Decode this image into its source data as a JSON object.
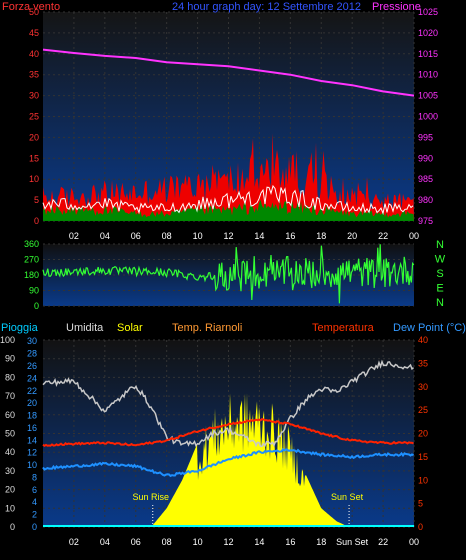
{
  "chart_data": [
    {
      "type": "line",
      "title": "24 hour graph day: 12 Settembre 2012",
      "left_axis_label": "Forza vento",
      "right_axis_label": "Pressione",
      "left_ticks": [
        "0",
        "5",
        "10",
        "15",
        "20",
        "25",
        "30",
        "35",
        "40",
        "45",
        "50"
      ],
      "right_ticks": [
        "975",
        "980",
        "985",
        "990",
        "995",
        "1000",
        "1005",
        "1010",
        "1015",
        "1020",
        "1025"
      ],
      "x_ticks": [
        "02",
        "04",
        "06",
        "08",
        "10",
        "12",
        "14",
        "16",
        "18",
        "20",
        "22",
        "00"
      ],
      "ylim_left": [
        0,
        50
      ],
      "ylim_right": [
        975,
        1025
      ],
      "series": [
        {
          "name": "Pressione",
          "color": "#ff33ff",
          "x": [
            0,
            2,
            4,
            6,
            8,
            10,
            12,
            14,
            16,
            18,
            20,
            22,
            24
          ],
          "values": [
            1016,
            1015.2,
            1014.5,
            1014,
            1013,
            1012.5,
            1012,
            1011,
            1010,
            1008.5,
            1007.5,
            1006,
            1005
          ]
        },
        {
          "name": "Forza vento",
          "color": "#ff0000",
          "x": [
            0,
            2,
            4,
            6,
            8,
            10,
            12,
            14,
            16,
            18,
            20,
            22,
            24
          ],
          "values": [
            6,
            6,
            7,
            7,
            8,
            9,
            10,
            12,
            13,
            9,
            6,
            5,
            5
          ]
        },
        {
          "color": "#ffffff",
          "x": [
            0,
            2,
            4,
            6,
            8,
            10,
            12,
            14,
            16,
            18,
            20,
            22,
            24
          ],
          "values": [
            4,
            4,
            4,
            3,
            3,
            4,
            5,
            6,
            6,
            4,
            3,
            3,
            3
          ]
        },
        {
          "color": "#008800",
          "x": [
            0,
            2,
            4,
            6,
            8,
            10,
            12,
            14,
            16,
            18,
            20,
            22,
            24
          ],
          "values": [
            3,
            3,
            3,
            2,
            2,
            3,
            3,
            4,
            4,
            3,
            2,
            2,
            2
          ]
        }
      ]
    },
    {
      "type": "line",
      "left_ticks": [
        "0",
        "90",
        "180",
        "270",
        "360"
      ],
      "right_labels": [
        "N",
        "W",
        "S",
        "E",
        "N"
      ],
      "x_ticks": [
        "02",
        "04",
        "06",
        "08",
        "10",
        "12",
        "14",
        "16",
        "18",
        "20",
        "22",
        "00"
      ],
      "ylim": [
        0,
        360
      ],
      "series": [
        {
          "color": "#33ff33",
          "x": [
            0,
            2,
            4,
            6,
            8,
            10,
            12,
            14,
            16,
            18,
            20,
            22,
            24
          ],
          "values": [
            195,
            200,
            205,
            200,
            195,
            170,
            180,
            170,
            200,
            190,
            200,
            190,
            210
          ]
        }
      ]
    },
    {
      "type": "area",
      "labels": {
        "pioggia": "Pioggia",
        "umidita": "Umidita",
        "solar": "Solar",
        "riarnoli": "Temp. Riarnoli",
        "temperatura": "Temperatura",
        "dewpoint": "Dew Point (°C)"
      },
      "col1_ticks": [
        "0",
        "10",
        "20",
        "30",
        "40",
        "50",
        "60",
        "70",
        "80",
        "90",
        "100"
      ],
      "col2_ticks": [
        "0",
        "2",
        "4",
        "6",
        "8",
        "10",
        "12",
        "14",
        "16",
        "18",
        "20",
        "22",
        "24",
        "26",
        "28",
        "30"
      ],
      "right_ticks": [
        "0",
        "5",
        "10",
        "15",
        "20",
        "25",
        "30",
        "35",
        "40"
      ],
      "x_ticks": [
        "02",
        "04",
        "06",
        "08",
        "10",
        "12",
        "14",
        "16",
        "18",
        "Sun Set",
        "22",
        "00"
      ],
      "annotations": {
        "sunrise": "Sun Rise",
        "sunset": "Sun Set"
      },
      "sunrise_hour": 7.1,
      "sunset_hour": 19.8,
      "ylim_percent": [
        0,
        100
      ],
      "ylim_temp": [
        0,
        40
      ],
      "series": [
        {
          "name": "Umidita",
          "color": "#c8c8c8",
          "x": [
            0,
            2,
            4,
            6,
            7,
            8,
            9,
            10,
            11,
            12,
            13,
            14,
            15,
            16,
            17,
            18,
            19,
            20,
            22,
            24
          ],
          "values": [
            77,
            78,
            62,
            76,
            64,
            48,
            44,
            45,
            50,
            52,
            48,
            44,
            45,
            58,
            68,
            74,
            72,
            78,
            88,
            85
          ]
        },
        {
          "name": "Solar",
          "color": "#ffff00",
          "x": [
            0,
            7,
            8,
            9,
            10,
            11,
            12,
            13,
            14,
            15,
            16,
            17,
            18,
            19,
            19.8,
            24
          ],
          "values": [
            0,
            0,
            10,
            25,
            45,
            60,
            68,
            70,
            68,
            62,
            50,
            28,
            10,
            3,
            0,
            0
          ]
        },
        {
          "name": "Temperatura",
          "color": "#ff2200",
          "x": [
            0,
            2,
            4,
            6,
            8,
            10,
            12,
            14,
            16,
            18,
            20,
            22,
            24
          ],
          "values": [
            17.5,
            17.8,
            18,
            17.5,
            18.5,
            20.5,
            22,
            23,
            22,
            20,
            18.5,
            18,
            18
          ]
        },
        {
          "name": "Dew Point (°C)",
          "color": "#1e90ff",
          "x": [
            0,
            2,
            4,
            6,
            8,
            10,
            12,
            14,
            16,
            18,
            20,
            22,
            24
          ],
          "values": [
            12.5,
            13,
            13.5,
            13,
            11,
            12,
            14.5,
            16,
            16.5,
            15.5,
            15,
            15.5,
            15.5
          ]
        },
        {
          "name": "Pioggia",
          "color": "#00ffff",
          "x": [
            0,
            24
          ],
          "values": [
            0,
            0
          ]
        }
      ]
    }
  ]
}
